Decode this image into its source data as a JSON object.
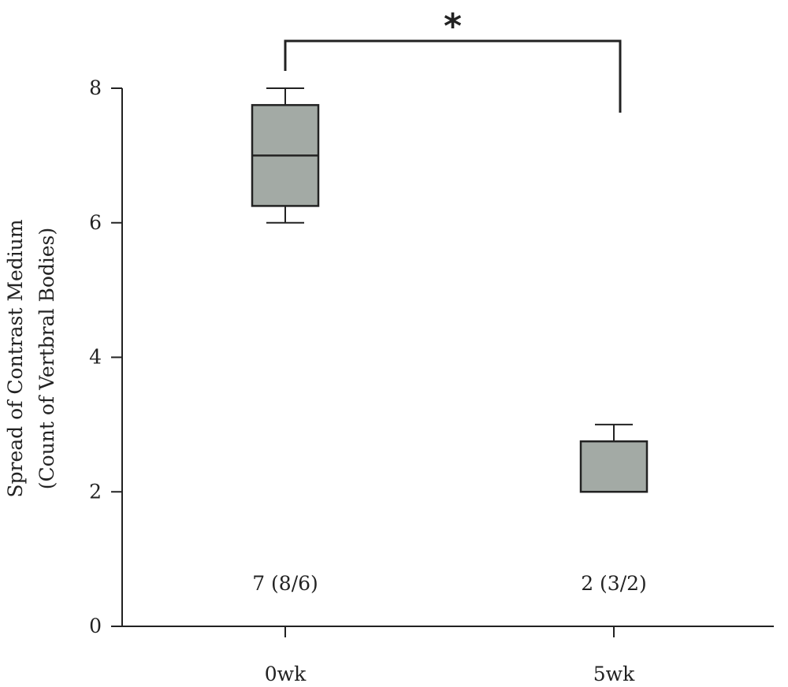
{
  "chart_data": {
    "type": "box",
    "ylabel_line1": "Spread of Contrast Medium",
    "ylabel_line2": "(Count of Vertbral Bodies)",
    "ylim": [
      0,
      8
    ],
    "yticks": [
      "0",
      "2",
      "4",
      "6",
      "8"
    ],
    "yticks_values": [
      0,
      2,
      4,
      6,
      8
    ],
    "categories": [
      "0wk",
      "5wk"
    ],
    "boxes": [
      {
        "category": "0wk",
        "min": 6,
        "q1": 6.25,
        "median": 7,
        "q3": 7.75,
        "max": 8,
        "annotation": "7 (8/6)"
      },
      {
        "category": "5wk",
        "min": 2,
        "q1": 2,
        "median": 2,
        "q3": 2.75,
        "max": 3,
        "annotation": "2 (3/2)"
      }
    ],
    "significance": {
      "between": [
        "0wk",
        "5wk"
      ],
      "mark": "*"
    },
    "box_fill_color": "#a3aaa5",
    "line_color": "#222222",
    "grid": false
  }
}
